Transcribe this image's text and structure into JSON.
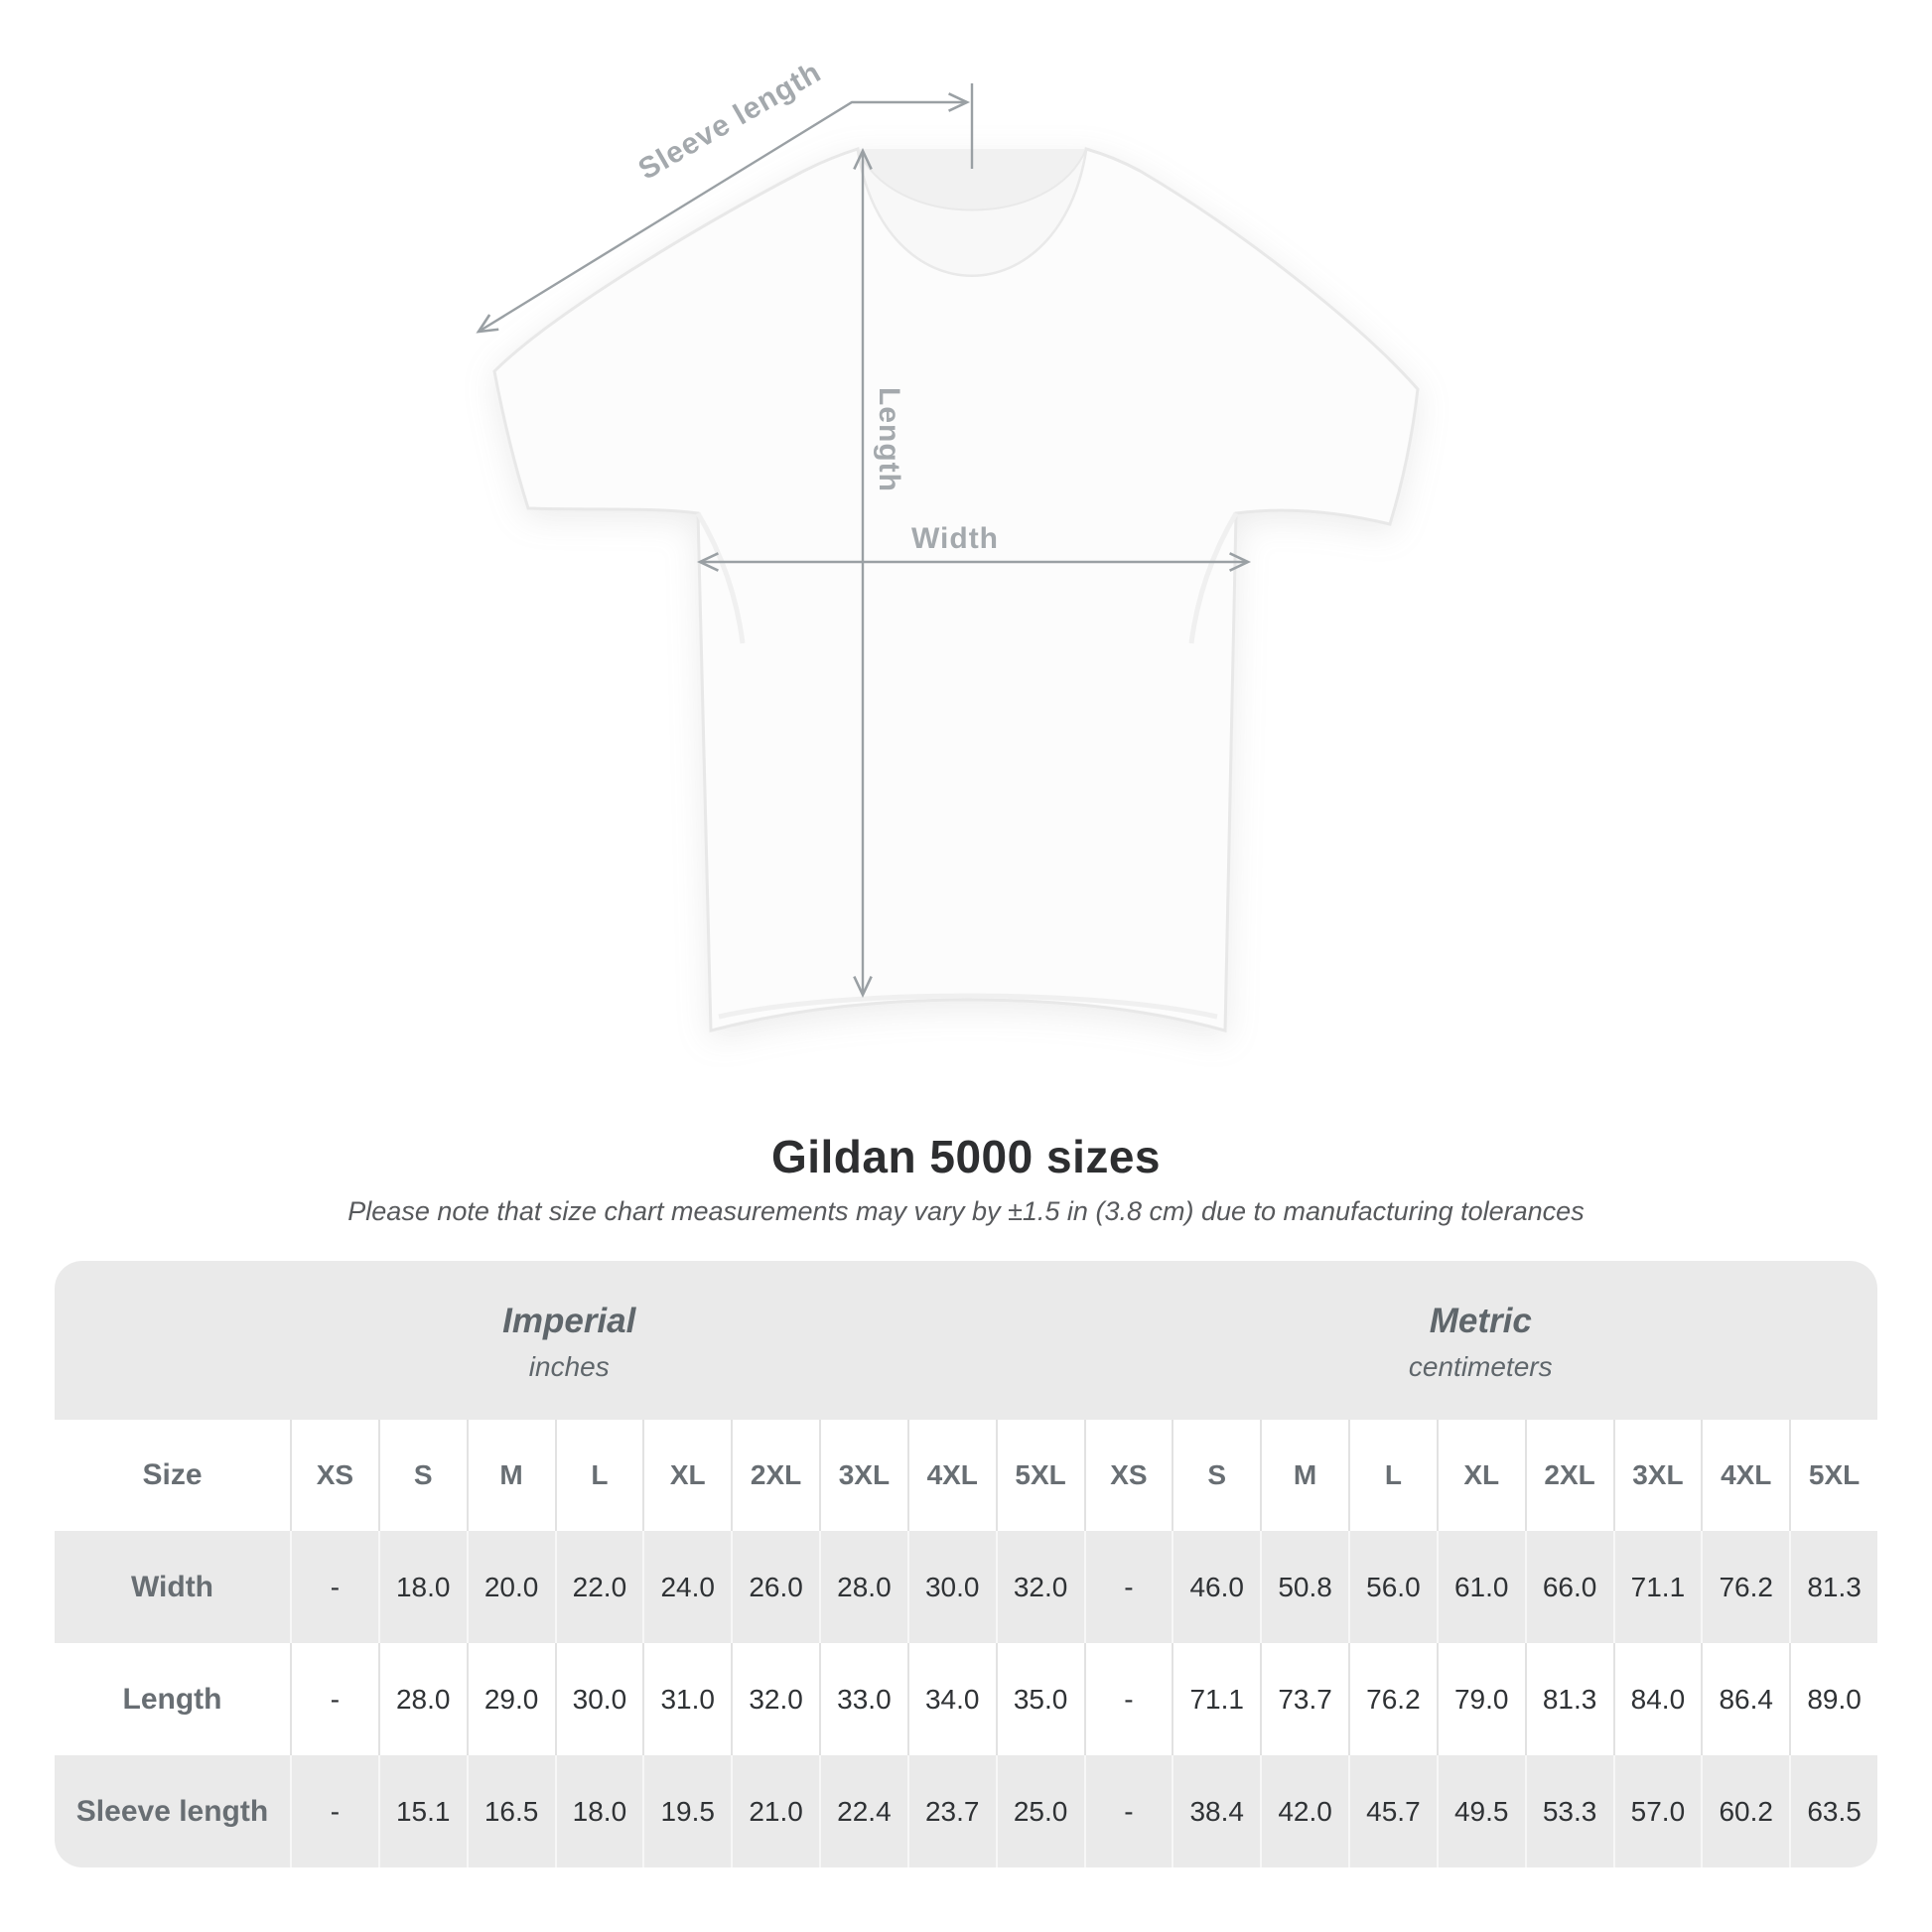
{
  "title": "Gildan 5000 sizes",
  "subtitle": "Please note that size chart measurements may vary by ±1.5 in (3.8 cm) due to manufacturing tolerances",
  "diagram": {
    "labels": {
      "sleeve_length": "Sleeve length",
      "length": "Length",
      "width": "Width"
    }
  },
  "chart_data": {
    "type": "table",
    "title": "Gildan 5000 sizes",
    "note": "Please note that size chart measurements may vary by ±1.5 in (3.8 cm) due to manufacturing tolerances",
    "size_header_label": "Size",
    "column_groups": [
      {
        "label": "Imperial",
        "unit": "inches"
      },
      {
        "label": "Metric",
        "unit": "centimeters"
      }
    ],
    "sizes": [
      "XS",
      "S",
      "M",
      "L",
      "XL",
      "2XL",
      "3XL",
      "4XL",
      "5XL"
    ],
    "rows": [
      {
        "label": "Width",
        "imperial": [
          "-",
          "18.0",
          "20.0",
          "22.0",
          "24.0",
          "26.0",
          "28.0",
          "30.0",
          "32.0"
        ],
        "metric": [
          "-",
          "46.0",
          "50.8",
          "56.0",
          "61.0",
          "66.0",
          "71.1",
          "76.2",
          "81.3"
        ]
      },
      {
        "label": "Length",
        "imperial": [
          "-",
          "28.0",
          "29.0",
          "30.0",
          "31.0",
          "32.0",
          "33.0",
          "34.0",
          "35.0"
        ],
        "metric": [
          "-",
          "71.1",
          "73.7",
          "76.2",
          "79.0",
          "81.3",
          "84.0",
          "86.4",
          "89.0"
        ]
      },
      {
        "label": "Sleeve length",
        "imperial": [
          "-",
          "15.1",
          "16.5",
          "18.0",
          "19.5",
          "21.0",
          "22.4",
          "23.7",
          "25.0"
        ],
        "metric": [
          "-",
          "38.4",
          "42.0",
          "45.7",
          "49.5",
          "53.3",
          "57.0",
          "60.2",
          "63.5"
        ]
      }
    ]
  },
  "colors": {
    "table_band": "#eaeaea",
    "row_shade": "#eaeaea",
    "header_text": "#686e73",
    "value_text": "#2f3235",
    "title_text": "#2d2e30",
    "annotation": "#9aa0a4"
  }
}
